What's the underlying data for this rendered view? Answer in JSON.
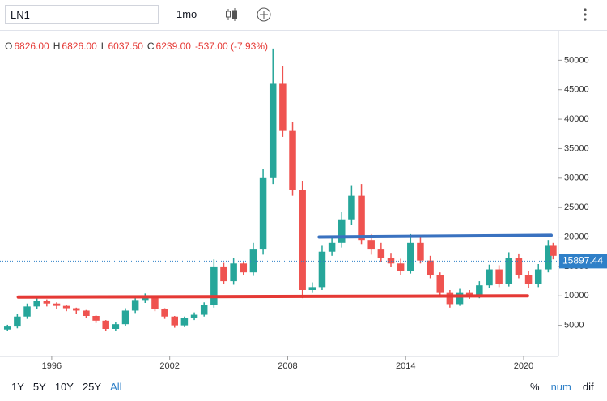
{
  "toolbar": {
    "symbol": "LN1",
    "interval": "1mo"
  },
  "legend": [
    {
      "key": "O",
      "text": "6826.00"
    },
    {
      "key": "H",
      "text": "6826.00"
    },
    {
      "key": "L",
      "text": "6037.50"
    },
    {
      "key": "C",
      "text": "6239.00"
    },
    {
      "key": "",
      "text": "-537.00 (-7.93%)"
    }
  ],
  "footer": {
    "ranges": [
      "1Y",
      "5Y",
      "10Y",
      "25Y",
      "All"
    ],
    "modes": [
      "%",
      "num",
      "dif"
    ]
  },
  "chart_data": {
    "type": "candlestick",
    "x": [
      1993.75,
      1994.25,
      1994.75,
      1995.25,
      1995.75,
      1996.25,
      1996.75,
      1997.25,
      1997.75,
      1998.25,
      1998.75,
      1999.25,
      1999.75,
      2000.25,
      2000.75,
      2001.25,
      2001.75,
      2002.25,
      2002.75,
      2003.25,
      2003.75,
      2004.25,
      2004.75,
      2005.25,
      2005.75,
      2006.25,
      2006.75,
      2007.25,
      2007.75,
      2008.25,
      2008.75,
      2009.25,
      2009.75,
      2010.25,
      2010.75,
      2011.25,
      2011.75,
      2012.25,
      2012.75,
      2013.25,
      2013.75,
      2014.25,
      2014.75,
      2015.25,
      2015.75,
      2016.25,
      2016.75,
      2017.25,
      2017.75,
      2018.25,
      2018.75,
      2019.25,
      2019.75,
      2020.25,
      2020.75,
      2021.25,
      2021.5
    ],
    "open": [
      4300,
      4800,
      6500,
      8200,
      9200,
      8700,
      8300,
      7900,
      7500,
      6600,
      5800,
      4400,
      5200,
      7500,
      9300,
      9800,
      7800,
      6500,
      5000,
      6200,
      6800,
      8400,
      15000,
      12500,
      15500,
      14000,
      18000,
      30000,
      46000,
      38000,
      28000,
      11000,
      11500,
      17500,
      19000,
      23000,
      27000,
      19500,
      18000,
      16500,
      15500,
      14200,
      19000,
      16000,
      13500,
      10500,
      8600,
      10500,
      10000,
      11800,
      14500,
      12000,
      16500,
      13500,
      12000,
      14500,
      18500
    ],
    "high": [
      5100,
      6900,
      8700,
      9800,
      9400,
      8900,
      8400,
      8000,
      7600,
      6700,
      5900,
      5500,
      7900,
      9800,
      10400,
      10000,
      7900,
      6600,
      6500,
      7200,
      8900,
      16200,
      15600,
      16400,
      15800,
      19000,
      31500,
      52000,
      49000,
      39500,
      29500,
      12300,
      18500,
      20200,
      24200,
      28800,
      29000,
      20500,
      19000,
      17300,
      16300,
      20500,
      20100,
      16800,
      14000,
      11000,
      11200,
      11000,
      12500,
      15300,
      15200,
      17400,
      17200,
      14200,
      15400,
      19500,
      19000
    ],
    "low": [
      4000,
      4500,
      6100,
      7700,
      8200,
      7800,
      7400,
      7000,
      6200,
      5400,
      4000,
      4100,
      4900,
      7100,
      8800,
      7400,
      6100,
      4600,
      4700,
      5900,
      6500,
      8000,
      12000,
      11900,
      13500,
      13400,
      17000,
      29000,
      37000,
      27000,
      9600,
      10500,
      11000,
      16800,
      18200,
      22000,
      18800,
      17000,
      15800,
      14900,
      13600,
      13800,
      15500,
      13000,
      10000,
      8000,
      8300,
      9500,
      9600,
      11300,
      11500,
      11600,
      13000,
      11300,
      11500,
      14000,
      16200
    ],
    "close": [
      4800,
      6500,
      8200,
      9200,
      8700,
      8300,
      7900,
      7500,
      6600,
      5800,
      4400,
      5200,
      7500,
      9300,
      9800,
      7800,
      6500,
      5000,
      6200,
      6800,
      8400,
      15000,
      12500,
      15500,
      14000,
      18000,
      30000,
      46000,
      38000,
      28000,
      11000,
      11500,
      17500,
      19000,
      23000,
      27000,
      19500,
      18000,
      16500,
      15500,
      14200,
      19000,
      16000,
      13500,
      10500,
      8600,
      10500,
      10000,
      11800,
      14500,
      12000,
      16500,
      13500,
      12000,
      14500,
      18500,
      16800
    ],
    "up_color": "#26a69a",
    "down_color": "#ef5350",
    "xlim": [
      1993.37,
      2021.77
    ],
    "xticks": [
      1996,
      2002,
      2008,
      2014,
      2020
    ],
    "ylim": [
      0,
      55000
    ],
    "yticks": [
      5000,
      10000,
      15000,
      20000,
      25000,
      30000,
      35000,
      40000,
      45000,
      50000
    ],
    "last_price": 15897.44,
    "last_price_color": "#2f80c8",
    "lines": [
      {
        "x": [
          1994.3,
          2020.2
        ],
        "y": [
          9800,
          10000
        ],
        "color": "#e53935"
      },
      {
        "x": [
          2009.6,
          2021.4
        ],
        "y": [
          20000,
          20300
        ],
        "color": "#3a72c0"
      }
    ]
  }
}
